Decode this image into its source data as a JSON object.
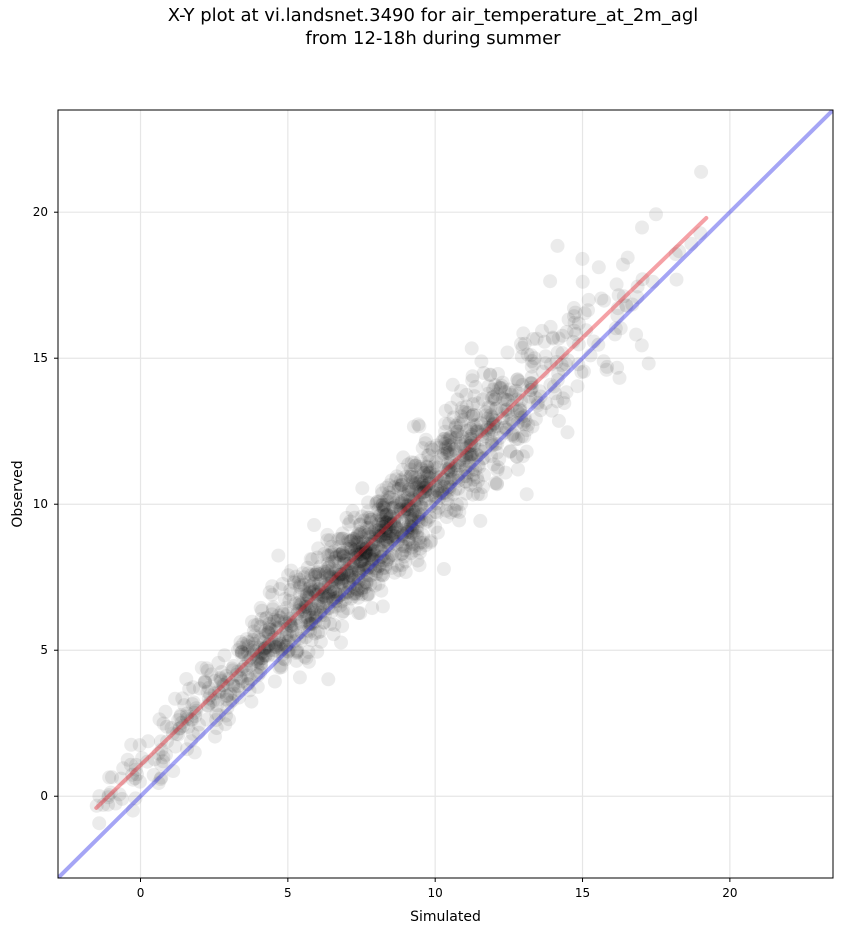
{
  "chart_data": {
    "type": "scatter",
    "title": "X-Y plot at vi.landsnet.3490 for air_temperature_at_2m_agl",
    "subtitle": "from 12-18h during summer",
    "xlabel": "Simulated",
    "ylabel": "Observed",
    "xlim": [
      -2.8,
      23.5
    ],
    "ylim": [
      -2.8,
      23.5
    ],
    "xticks": [
      0,
      5,
      10,
      15,
      20
    ],
    "yticks": [
      0,
      5,
      10,
      15,
      20
    ],
    "grid": true,
    "legend": "none",
    "points": {
      "color": "#000000",
      "opacity": 0.08,
      "n": 1500,
      "trend": {
        "slope": 0.97,
        "intercept": 1.05
      },
      "x_range": [
        -1.6,
        19.3
      ],
      "spread_sd": 1.0
    },
    "lines": [
      {
        "kind": "fit",
        "color": "#e8202a",
        "x": [
          -1.5,
          19.2
        ],
        "y": [
          -0.4,
          19.8
        ]
      },
      {
        "kind": "one-to-one",
        "color": "#2828e8",
        "x": [
          -2.8,
          23.5
        ],
        "y": [
          -2.8,
          23.5
        ]
      }
    ]
  }
}
